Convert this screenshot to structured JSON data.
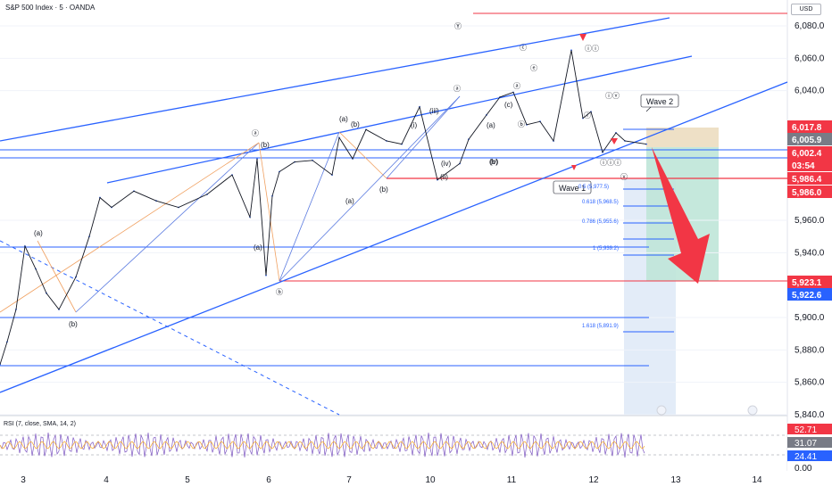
{
  "header": {
    "symbol": "S&P 500 Index · 5 · OANDA",
    "currency": "USD"
  },
  "chart_data": {
    "type": "line",
    "title": "S&P 500 Index · 5 · OANDA",
    "ylim": [
      5840,
      6095
    ],
    "y_ticks": [
      6080,
      6060,
      6040,
      5960,
      5940,
      5900,
      5880,
      5860,
      5840
    ],
    "y_tick_labels": [
      "6,080.0",
      "6,060.0",
      "6,040.0",
      "5,960.0",
      "5,940.0",
      "5,900.0",
      "5,880.0",
      "5,860.0",
      "5,840.0"
    ],
    "x_tick_labels": [
      "3",
      "4",
      "5",
      "6",
      "7",
      "10",
      "11",
      "12",
      "13",
      "14"
    ],
    "price_labels": [
      {
        "value": 6017.8,
        "text": "6,017.8",
        "color": "#f23645"
      },
      {
        "value": 6005.9,
        "text": "6,005.9",
        "color": "#787b86"
      },
      {
        "value": 6002.4,
        "text": "6,002.4",
        "color": "#f23645"
      },
      {
        "value": 6002.4,
        "text": "03:54",
        "color": "#f23645"
      },
      {
        "value": 5986.4,
        "text": "5,986.4",
        "color": "#f23645"
      },
      {
        "value": 5986.0,
        "text": "5,986.0",
        "color": "#f23645"
      },
      {
        "value": 5923.1,
        "text": "5,923.1",
        "color": "#f23645"
      },
      {
        "value": 5922.6,
        "text": "5,922.6",
        "color": "#2962ff"
      }
    ],
    "fib_levels": [
      {
        "label": "0.5 (5,977.5)",
        "value": 5977.5
      },
      {
        "label": "0.618 (5,968.5)",
        "value": 5968.5
      },
      {
        "label": "0.786 (5,955.6)",
        "value": 5955.6
      },
      {
        "label": "1 (5,939.2)",
        "value": 5939.2
      },
      {
        "label": "1.618 (5,891.9)",
        "value": 5891.9
      }
    ],
    "annotations": {
      "wave1": "Wave 1",
      "wave2": "Wave 2",
      "symbols": [
        "ⓐ",
        "(a)",
        "(b)",
        "(a)",
        "(b)",
        "ⓑ",
        "(a)",
        "(b)",
        "(a)",
        "(b)",
        "(iii)",
        "(i)",
        "(ii)",
        "(iv)",
        "(v)",
        "Ⓨ",
        "ⓐ",
        "(a)",
        "(b)",
        "(c)",
        "ⓒ",
        "ⓔ",
        "ⓐ",
        "ⓑ",
        "ⓘⓘ",
        "ⓘ",
        "ⓘⓥ",
        "ⓥ",
        "ⓘⓘⓘ"
      ]
    },
    "series": [
      {
        "values": [
          5871,
          5885,
          5905,
          5944,
          5930,
          5915,
          5905,
          5925,
          5950,
          5974,
          5968,
          5978,
          5972,
          5968,
          5976,
          5988,
          5962,
          5998,
          5926,
          5975,
          5990,
          5996,
          5997,
          5988,
          6011,
          5998,
          6016,
          6009,
          6007,
          6030,
          5985,
          5995,
          6010,
          6025,
          6036,
          6039,
          6019,
          6021,
          6009,
          6065,
          6023,
          6027,
          6002,
          6014,
          6009,
          6007
        ]
      }
    ],
    "rsi": {
      "title": "RSI (7, close, SMA, 14, 2)",
      "values": [
        "52.71",
        "31.07",
        "24.41",
        "0.00"
      ],
      "colors": [
        "#f23645",
        "#787b86",
        "#2962ff",
        "#787b86"
      ]
    }
  }
}
